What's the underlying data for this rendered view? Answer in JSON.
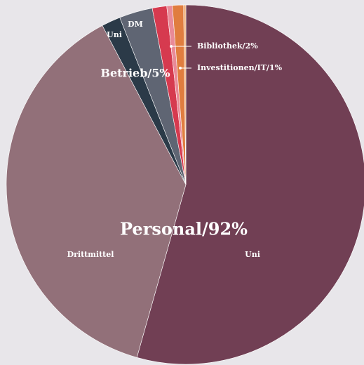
{
  "chart_data": {
    "type": "pie",
    "groups": [
      {
        "label": "Personal/92%",
        "slices": [
          {
            "label": "Uni",
            "value": 54.4,
            "color": "#713f54"
          },
          {
            "label": "Drittmittel",
            "value": 37.9,
            "color": "#927079"
          }
        ]
      },
      {
        "label": "Betrieb/5%",
        "slices": [
          {
            "label": "Uni",
            "value": 1.7,
            "color": "#2b3a48"
          },
          {
            "label": "DM",
            "value": 3.0,
            "color": "#5f6573"
          }
        ]
      },
      {
        "label": "Bibliothek/2%",
        "slices": [
          {
            "label": null,
            "value": 1.3,
            "color": "#d63a4f"
          },
          {
            "label": null,
            "value": 0.5,
            "color": "#e98a97"
          }
        ]
      },
      {
        "label": "Investitionen/IT/1%",
        "slices": [
          {
            "label": null,
            "value": 1.0,
            "color": "#e07d3f"
          },
          {
            "label": null,
            "value": 0.2,
            "color": "#f0b07a"
          }
        ]
      }
    ]
  }
}
